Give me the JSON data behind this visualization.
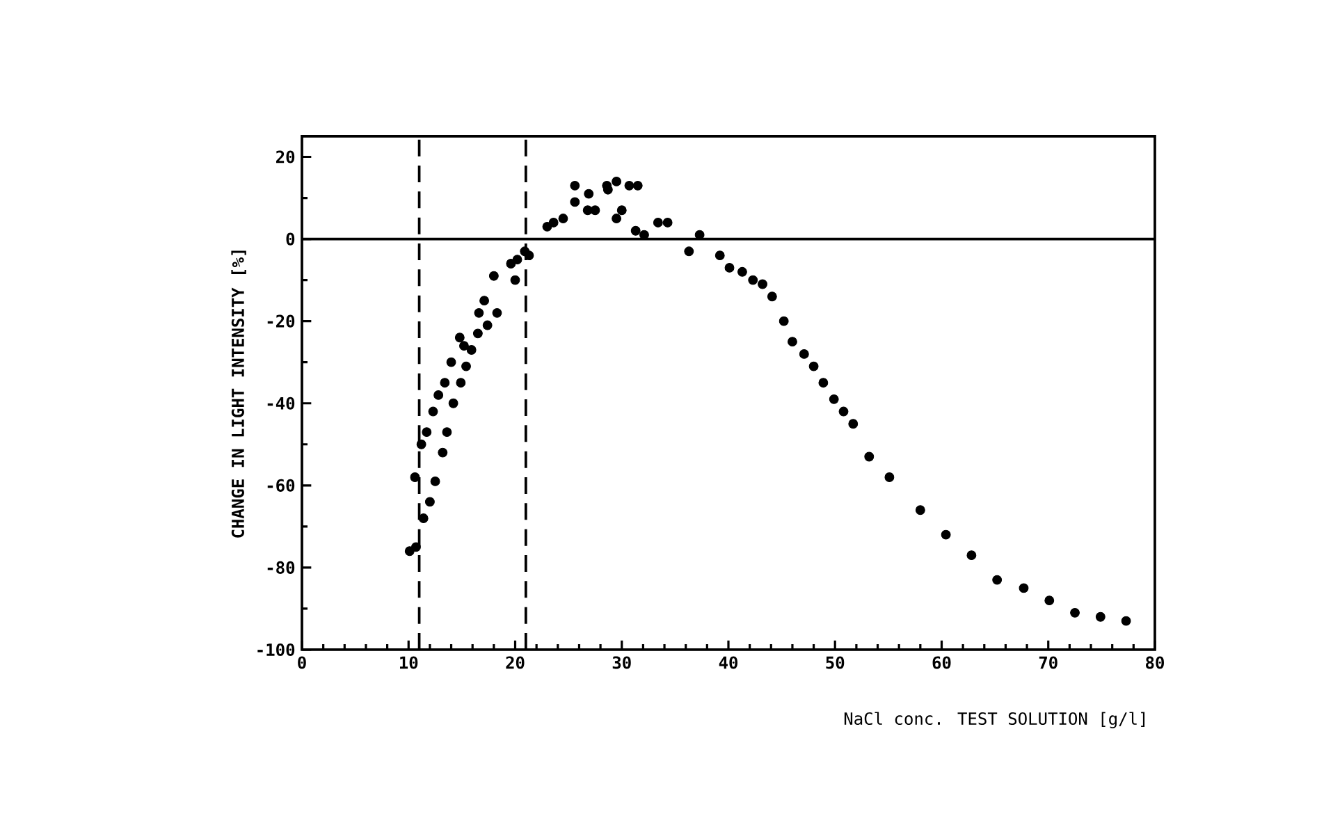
{
  "chart_data": {
    "type": "scatter",
    "xlabel": "NaCl conc. TEST SOLUTION [g/l]",
    "ylabel": "CHANGE IN LIGHT INTENSITY [%]",
    "xlim": [
      0,
      80
    ],
    "xticks": [
      0,
      10,
      20,
      30,
      40,
      50,
      60,
      70,
      80
    ],
    "ylim": [
      -100,
      25
    ],
    "yticks": [
      -100,
      -80,
      -60,
      -40,
      -20,
      0,
      20
    ],
    "marker": "circle",
    "grid": false,
    "ref_lines": [
      {
        "axis": "x",
        "value": 11,
        "line_style": "dashed"
      },
      {
        "axis": "x",
        "value": 21,
        "line_style": "dashed"
      },
      {
        "axis": "y",
        "value": 0,
        "line_style": "solid"
      }
    ],
    "series": [
      {
        "color": "#000000",
        "x": [
          10.1,
          10.7,
          11.4,
          12,
          12.5,
          10.6,
          11.2,
          11.7,
          13.2,
          13.6,
          12.3,
          14.2,
          12.8,
          13.4,
          14.9,
          14,
          15.4,
          15.9,
          14.8,
          15.2,
          16.5,
          17.4,
          18.3,
          16.6,
          17.1,
          18,
          20,
          19.6,
          20.2,
          20.9,
          21.3,
          23,
          23.6,
          24.5,
          25.6,
          25.6,
          26.9,
          26.8,
          27.5,
          28.6,
          29.5,
          28.7,
          30.7,
          31.5,
          30,
          29.5,
          31.3,
          32.1,
          33.4,
          34.3,
          36.3,
          37.3,
          39.2,
          40.1,
          41.3,
          42.3,
          43.2,
          44.1,
          45.2,
          46,
          47.1,
          48,
          48.9,
          49.9,
          50.8,
          51.7,
          53.2,
          55.1,
          58,
          60.4,
          62.8,
          65.2,
          67.7,
          70.1,
          72.5,
          74.9,
          77.3
        ],
        "values": [
          -76,
          -75,
          -68,
          -64,
          -59,
          -58,
          -50,
          -47,
          -52,
          -47,
          -42,
          -40,
          -38,
          -35,
          -35,
          -30,
          -31,
          -27,
          -24,
          -26,
          -23,
          -21,
          -18,
          -18,
          -15,
          -9,
          -10,
          -6,
          -5,
          -3,
          -4,
          3,
          4,
          5,
          9,
          13,
          11,
          7,
          7,
          13,
          14,
          12,
          13,
          13,
          7,
          5,
          2,
          1,
          4,
          4,
          -3,
          1,
          -4,
          -7,
          -8,
          -10,
          -11,
          -14,
          -20,
          -25,
          -28,
          -31,
          -35,
          -39,
          -42,
          -45,
          -53,
          -58,
          -66,
          -72,
          -77,
          -83,
          -85,
          -88,
          -91,
          -92,
          -93
        ]
      }
    ]
  }
}
